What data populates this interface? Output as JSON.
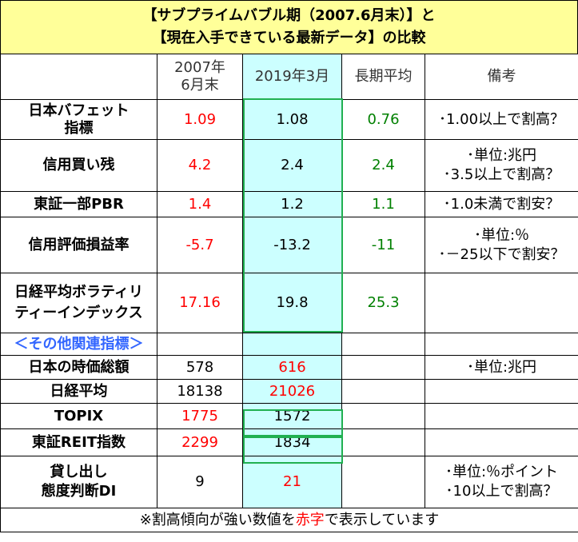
{
  "title": {
    "line1": "【サブプライムバブル期（2007.6月末）】と",
    "line2": "【現在入手できている最新データ】の比較"
  },
  "header": {
    "col_2007": "2007年\n6月末",
    "col_2019": "2019年3月",
    "col_avg": "長期平均",
    "col_note": "備考"
  },
  "rows": [
    {
      "name": "日本バフェット\n指標",
      "v2007": "1.09",
      "v2019": "1.08",
      "avg": "0.76",
      "note": "･1.00以上で割高？"
    },
    {
      "name": "信用買い残",
      "v2007": "4.2",
      "v2019": "2.4",
      "avg": "2.4",
      "note": "･単位:兆円\n･3.5以上で割高？"
    },
    {
      "name": "東証一部PBR",
      "v2007": "1.4",
      "v2019": "1.2",
      "avg": "1.1",
      "note": "･1.0未満で割安？"
    },
    {
      "name": "信用評価損益率",
      "v2007": "-5.7",
      "v2019": "-13.2",
      "avg": "-11",
      "note": "･単位:％\n･－25以下で割安？"
    },
    {
      "name": "日経平均ボラティリ\nティーインデックス",
      "v2007": "17.16",
      "v2019": "19.8",
      "avg": "25.3",
      "note": ""
    }
  ],
  "subheader": "＜その他関連指標＞",
  "other_rows": [
    {
      "name": "日本の時価総額",
      "v2007": "578",
      "v2019": "616",
      "note": "･単位:兆円"
    },
    {
      "name": "日経平均",
      "v2007": "18138",
      "v2019": "21026",
      "note": ""
    },
    {
      "name": "TOPIX",
      "v2007": "1775",
      "v2019": "1572",
      "note": ""
    },
    {
      "name": "東証REIT指数",
      "v2007": "2299",
      "v2019": "1834",
      "note": ""
    },
    {
      "name": "貸し出し\n態度判断DI",
      "v2007": "9",
      "v2019": "21",
      "note": "･単位:％ポイント\n･10以上で割高？"
    }
  ],
  "footnote": {
    "before": "※割高傾向が強い数値を",
    "highlight": "赤字",
    "after": "で表示しています"
  },
  "colors": {
    "title_bg": "#ffff99",
    "highlight_col_bg": "#ccffff",
    "frame_green": "#20b050",
    "red_text": "#ff0000",
    "green_text": "#008000",
    "subheader_blue": "#3366ff"
  }
}
